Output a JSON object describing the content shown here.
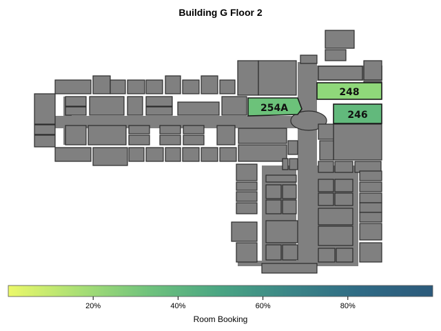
{
  "title": "Building G Floor 2",
  "rooms": [
    {
      "label": "254A",
      "value": 0.48,
      "color": "#6cc27a"
    },
    {
      "label": "248",
      "value": 0.34,
      "color": "#8fd87a"
    },
    {
      "label": "246",
      "value": 0.45,
      "color": "#62b97c"
    }
  ],
  "colorbar": {
    "label": "Room Booking",
    "ticks": [
      "20%",
      "40%",
      "60%",
      "80%"
    ],
    "tick_values": [
      0.2,
      0.4,
      0.6,
      0.8
    ],
    "range": [
      0,
      1
    ],
    "colors": [
      "#ebf86a",
      "#a9df75",
      "#6fc27d",
      "#4aa583",
      "#3b8587",
      "#2f6a85",
      "#2c5a7b"
    ]
  }
}
